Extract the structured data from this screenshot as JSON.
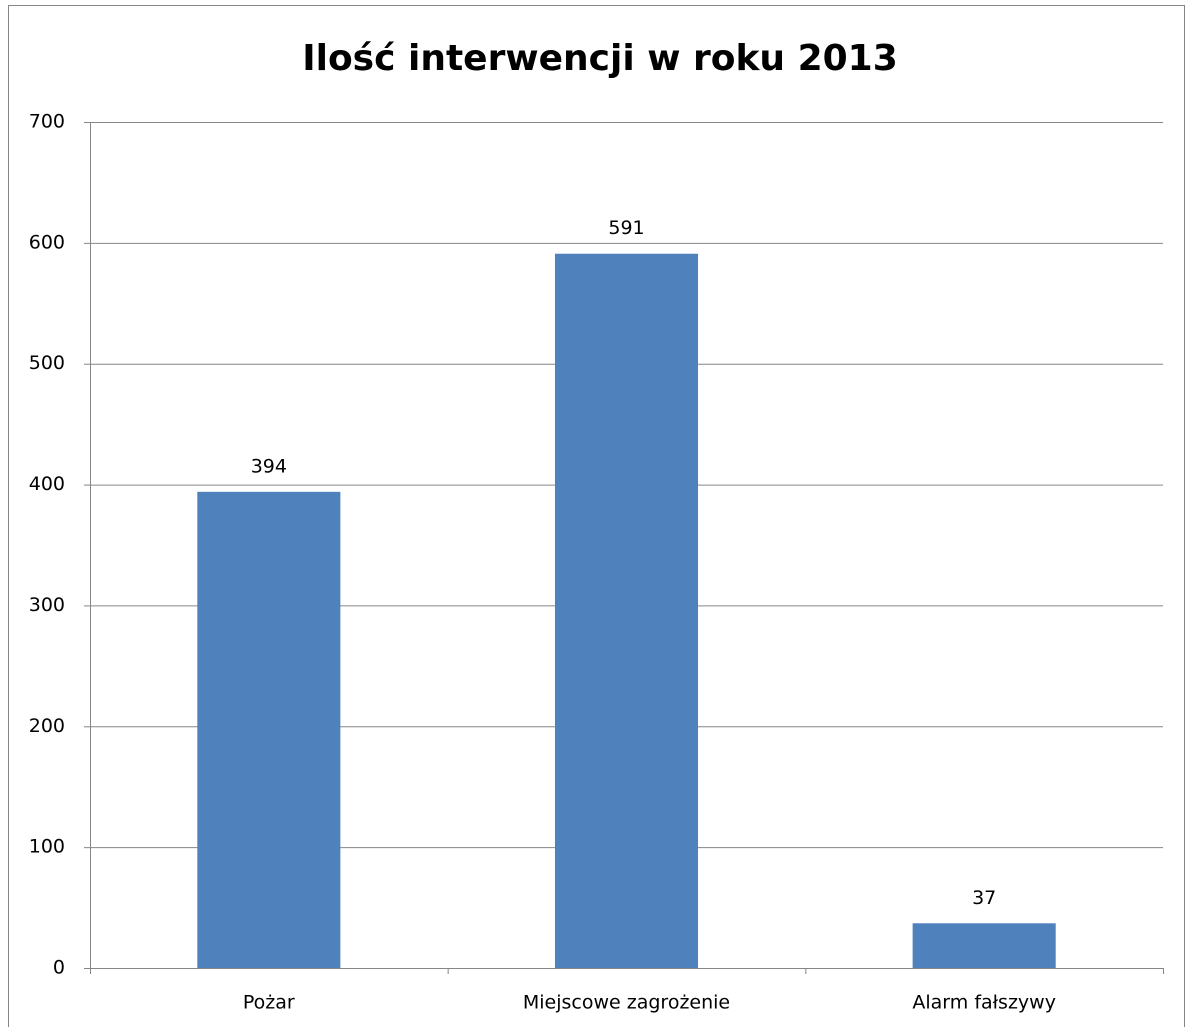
{
  "chart_data": {
    "type": "bar",
    "title": "Ilość interwencji w roku 2013",
    "categories": [
      "Pożar",
      "Miejscowe zagrożenie",
      "Alarm fałszywy"
    ],
    "values": [
      394,
      591,
      37
    ],
    "color": "#4f81bd",
    "ylim": [
      0,
      700
    ],
    "yticks": [
      0,
      100,
      200,
      300,
      400,
      500,
      600,
      700
    ],
    "grid": true
  }
}
